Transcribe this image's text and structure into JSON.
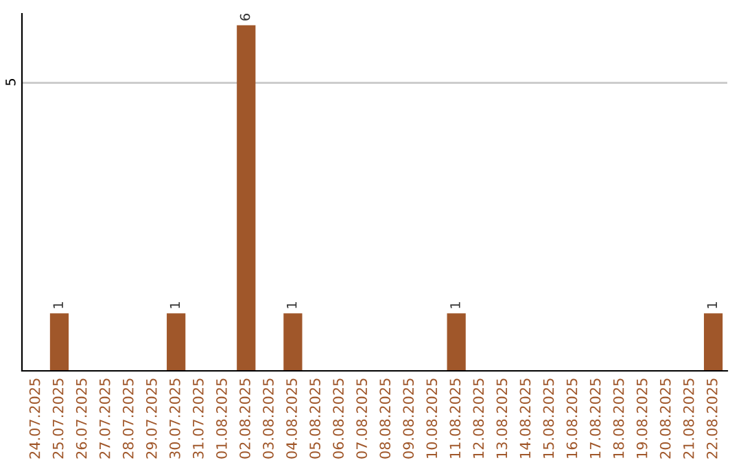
{
  "chart_data": {
    "type": "bar",
    "categories": [
      "24.07.2025",
      "25.07.2025",
      "26.07.2025",
      "27.07.2025",
      "28.07.2025",
      "29.07.2025",
      "30.07.2025",
      "31.07.2025",
      "01.08.2025",
      "02.08.2025",
      "03.08.2025",
      "04.08.2025",
      "05.08.2025",
      "06.08.2025",
      "07.08.2025",
      "08.08.2025",
      "09.08.2025",
      "10.08.2025",
      "11.08.2025",
      "12.08.2025",
      "13.08.2025",
      "14.08.2025",
      "15.08.2025",
      "16.08.2025",
      "17.08.2025",
      "18.08.2025",
      "19.08.2025",
      "20.08.2025",
      "21.08.2025",
      "22.08.2025"
    ],
    "values": [
      0,
      1,
      0,
      0,
      0,
      0,
      1,
      0,
      0,
      6,
      0,
      1,
      0,
      0,
      0,
      0,
      0,
      0,
      1,
      0,
      0,
      0,
      0,
      0,
      0,
      0,
      0,
      0,
      0,
      1
    ],
    "value_labels": [
      null,
      "1",
      null,
      null,
      null,
      null,
      "1",
      null,
      null,
      "6",
      null,
      "1",
      null,
      null,
      null,
      null,
      null,
      null,
      "1",
      null,
      null,
      null,
      null,
      null,
      null,
      null,
      null,
      null,
      null,
      "1"
    ],
    "color": "#a0572a",
    "ylim": [
      0,
      6.2
    ],
    "yticks": [
      5
    ],
    "grid": "y",
    "legend": false
  }
}
